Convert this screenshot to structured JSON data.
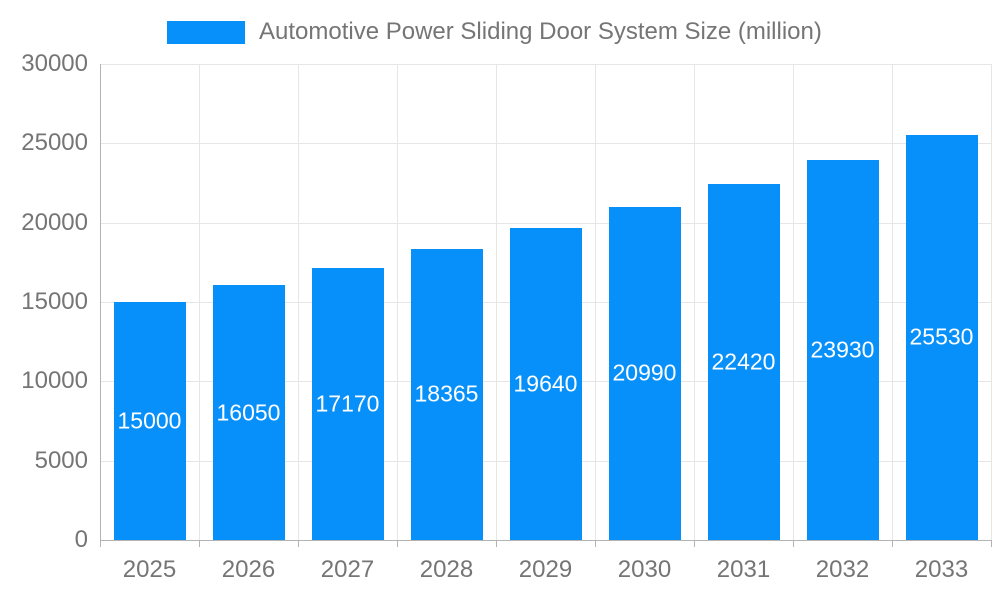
{
  "legend": {
    "series_label": "Automotive Power Sliding Door System Size (million)"
  },
  "chart_data": {
    "type": "bar",
    "title": "Automotive Power Sliding Door System Size (million)",
    "categories": [
      "2025",
      "2026",
      "2027",
      "2028",
      "2029",
      "2030",
      "2031",
      "2032",
      "2033"
    ],
    "values": [
      15000,
      16050,
      17170,
      18365,
      19640,
      20990,
      22420,
      23930,
      25530
    ],
    "xlabel": "",
    "ylabel": "",
    "ylim": [
      0,
      30000
    ],
    "yticks": [
      0,
      5000,
      10000,
      15000,
      20000,
      25000,
      30000
    ],
    "grid": true,
    "legend_position": "top",
    "value_labels": "inside-center",
    "colors": {
      "bar": "#0890fa",
      "value_label": "#ffffff",
      "axis_text": "#757575",
      "grid_line": "#e6e6e6",
      "axis_line": "#b3b3b3"
    }
  }
}
